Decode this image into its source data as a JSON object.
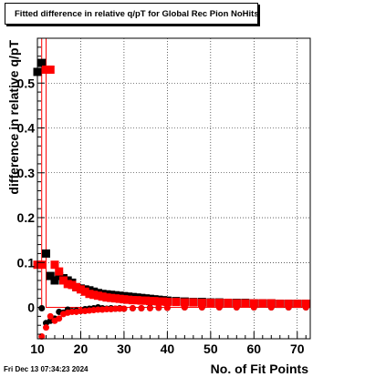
{
  "footer": {
    "timestamp": "Fri Dec 13 07:34:23 2024"
  },
  "chart_data": {
    "type": "scatter",
    "title": "Fitted difference in relative q/pT for Global Rec Pion NoHits",
    "xlabel": "No. of Fit Points",
    "ylabel": "difference in relative q/pT",
    "xlim": [
      10,
      73
    ],
    "ylim": [
      -0.07,
      0.6
    ],
    "xticks": [
      10,
      20,
      30,
      40,
      50,
      60,
      70
    ],
    "yticks": [
      0,
      0.1,
      0.2,
      0.3,
      0.4,
      0.5
    ],
    "ytick_labels": [
      "0",
      "0.1",
      "0.2",
      "0.3",
      "0.4",
      "0.5"
    ],
    "grid": true,
    "colors": {
      "black_series": "#000000",
      "red_series": "#ff0000",
      "histogram_line": "#ff0000"
    },
    "series": [
      {
        "color": "black",
        "marker": "square",
        "points": [
          [
            10,
            0.525
          ],
          [
            11,
            0.545
          ],
          [
            12,
            0.12
          ],
          [
            13,
            0.07
          ],
          [
            14,
            0.06
          ],
          [
            15,
            0.07
          ],
          [
            16,
            0.065
          ],
          [
            17,
            0.06
          ],
          [
            18,
            0.055
          ],
          [
            19,
            0.045
          ],
          [
            20,
            0.042
          ],
          [
            21,
            0.04
          ],
          [
            22,
            0.038
          ],
          [
            23,
            0.035
          ],
          [
            24,
            0.032
          ],
          [
            25,
            0.03
          ],
          [
            26,
            0.029
          ],
          [
            27,
            0.028
          ],
          [
            28,
            0.027
          ],
          [
            29,
            0.026
          ],
          [
            30,
            0.025
          ],
          [
            31,
            0.024
          ],
          [
            32,
            0.023
          ],
          [
            33,
            0.022
          ],
          [
            34,
            0.021
          ],
          [
            35,
            0.02
          ],
          [
            36,
            0.019
          ],
          [
            37,
            0.018
          ],
          [
            38,
            0.017
          ],
          [
            39,
            0.016
          ],
          [
            40,
            0.015
          ],
          [
            42,
            0.014
          ],
          [
            44,
            0.013
          ],
          [
            46,
            0.012
          ],
          [
            48,
            0.012
          ],
          [
            50,
            0.011
          ],
          [
            52,
            0.011
          ],
          [
            54,
            0.01
          ],
          [
            56,
            0.01
          ],
          [
            58,
            0.01
          ],
          [
            60,
            0.009
          ],
          [
            62,
            0.009
          ],
          [
            64,
            0.009
          ],
          [
            66,
            0.008
          ],
          [
            68,
            0.008
          ],
          [
            70,
            0.008
          ],
          [
            72,
            0.008
          ]
        ]
      },
      {
        "color": "black",
        "marker": "circle",
        "points": [
          [
            11,
            -0.002
          ],
          [
            12,
            -0.035
          ],
          [
            13,
            -0.03
          ],
          [
            14,
            -0.025
          ],
          [
            15,
            -0.01
          ],
          [
            16,
            -0.012
          ],
          [
            17,
            -0.005
          ],
          [
            18,
            -0.008
          ],
          [
            19,
            -0.007
          ],
          [
            20,
            -0.008
          ],
          [
            21,
            -0.004
          ],
          [
            22,
            -0.003
          ],
          [
            23,
            -0.002
          ],
          [
            24,
            0.0
          ],
          [
            25,
            -0.002
          ],
          [
            26,
            -0.003
          ],
          [
            27,
            -0.002
          ],
          [
            28,
            -0.003
          ],
          [
            29,
            -0.002
          ],
          [
            30,
            -0.003
          ],
          [
            32,
            -0.002
          ],
          [
            34,
            -0.002
          ],
          [
            36,
            -0.001
          ],
          [
            38,
            -0.001
          ],
          [
            40,
            -0.001
          ],
          [
            44,
            0.0
          ],
          [
            48,
            0.0
          ],
          [
            52,
            0.0
          ],
          [
            56,
            0.0
          ],
          [
            60,
            0.0
          ],
          [
            64,
            0.0
          ],
          [
            68,
            0.0
          ],
          [
            72,
            0.0
          ]
        ]
      },
      {
        "color": "red",
        "marker": "square",
        "points": [
          [
            10,
            0.095
          ],
          [
            11,
            0.095
          ],
          [
            12,
            0.53
          ],
          [
            13,
            0.53
          ],
          [
            14,
            0.095
          ],
          [
            15,
            0.08
          ],
          [
            16,
            0.06
          ],
          [
            17,
            0.052
          ],
          [
            18,
            0.05
          ],
          [
            19,
            0.045
          ],
          [
            20,
            0.04
          ],
          [
            21,
            0.035
          ],
          [
            22,
            0.03
          ],
          [
            23,
            0.028
          ],
          [
            24,
            0.026
          ],
          [
            25,
            0.024
          ],
          [
            26,
            0.022
          ],
          [
            27,
            0.021
          ],
          [
            28,
            0.02
          ],
          [
            29,
            0.019
          ],
          [
            30,
            0.018
          ],
          [
            31,
            0.017
          ],
          [
            32,
            0.016
          ],
          [
            33,
            0.016
          ],
          [
            34,
            0.015
          ],
          [
            35,
            0.015
          ],
          [
            36,
            0.014
          ],
          [
            37,
            0.014
          ],
          [
            38,
            0.013
          ],
          [
            39,
            0.013
          ],
          [
            40,
            0.012
          ],
          [
            42,
            0.012
          ],
          [
            44,
            0.011
          ],
          [
            46,
            0.011
          ],
          [
            48,
            0.01
          ],
          [
            50,
            0.01
          ],
          [
            52,
            0.01
          ],
          [
            54,
            0.01
          ],
          [
            56,
            0.009
          ],
          [
            58,
            0.009
          ],
          [
            60,
            0.009
          ],
          [
            62,
            0.009
          ],
          [
            64,
            0.009
          ],
          [
            66,
            0.008
          ],
          [
            68,
            0.008
          ],
          [
            70,
            0.008
          ],
          [
            72,
            0.008
          ]
        ]
      },
      {
        "color": "red",
        "marker": "circle",
        "points": [
          [
            11,
            -0.065
          ],
          [
            12,
            -0.045
          ],
          [
            13,
            -0.02
          ],
          [
            14,
            -0.03
          ],
          [
            15,
            -0.025
          ],
          [
            16,
            -0.015
          ],
          [
            17,
            -0.012
          ],
          [
            18,
            -0.01
          ],
          [
            19,
            -0.01
          ],
          [
            20,
            -0.008
          ],
          [
            21,
            -0.008
          ],
          [
            22,
            -0.007
          ],
          [
            23,
            -0.006
          ],
          [
            24,
            -0.005
          ],
          [
            25,
            -0.005
          ],
          [
            26,
            -0.004
          ],
          [
            27,
            -0.004
          ],
          [
            28,
            -0.003
          ],
          [
            29,
            -0.003
          ],
          [
            30,
            -0.003
          ],
          [
            32,
            -0.002
          ],
          [
            34,
            -0.002
          ],
          [
            36,
            -0.002
          ],
          [
            38,
            -0.001
          ],
          [
            40,
            -0.001
          ],
          [
            44,
            0.0
          ],
          [
            48,
            0.0
          ],
          [
            52,
            0.0
          ],
          [
            56,
            0.0
          ],
          [
            60,
            0.0
          ],
          [
            64,
            0.0
          ],
          [
            68,
            0.0
          ],
          [
            72,
            0.0
          ]
        ]
      }
    ],
    "histogram_line": {
      "color": "red",
      "points": [
        [
          10,
          0.0
        ],
        [
          11,
          0.0
        ],
        [
          11,
          0.6
        ],
        [
          12,
          0.6
        ],
        [
          12,
          0.0
        ],
        [
          73,
          0.0
        ]
      ]
    }
  }
}
